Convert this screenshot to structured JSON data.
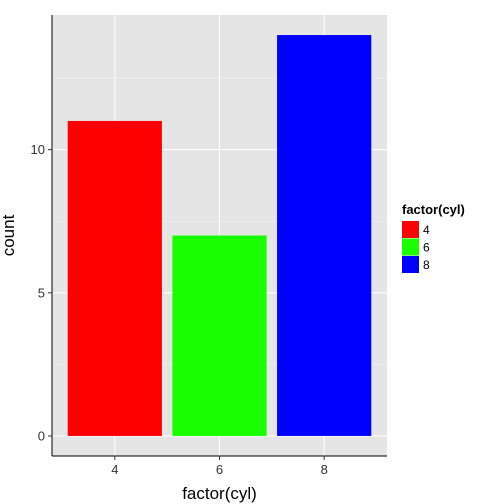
{
  "chart_data": {
    "type": "bar",
    "categories": [
      "4",
      "6",
      "8"
    ],
    "values": [
      11,
      7,
      14
    ],
    "colors": [
      "#ff0000",
      "#1aff00",
      "#0000ff"
    ],
    "xlabel": "factor(cyl)",
    "ylabel": "count",
    "ylim": [
      -0.7,
      14.7
    ],
    "yticks": [
      0,
      5,
      10
    ],
    "ytick_labels": [
      "0",
      "5",
      "10"
    ],
    "grid": true,
    "panel_background": "#e5e5e5",
    "legend": {
      "title": "factor(cyl)",
      "placement": "right",
      "entries": [
        {
          "label": "4",
          "color": "#ff0000"
        },
        {
          "label": "6",
          "color": "#1aff00"
        },
        {
          "label": "8",
          "color": "#0000ff"
        }
      ]
    }
  }
}
